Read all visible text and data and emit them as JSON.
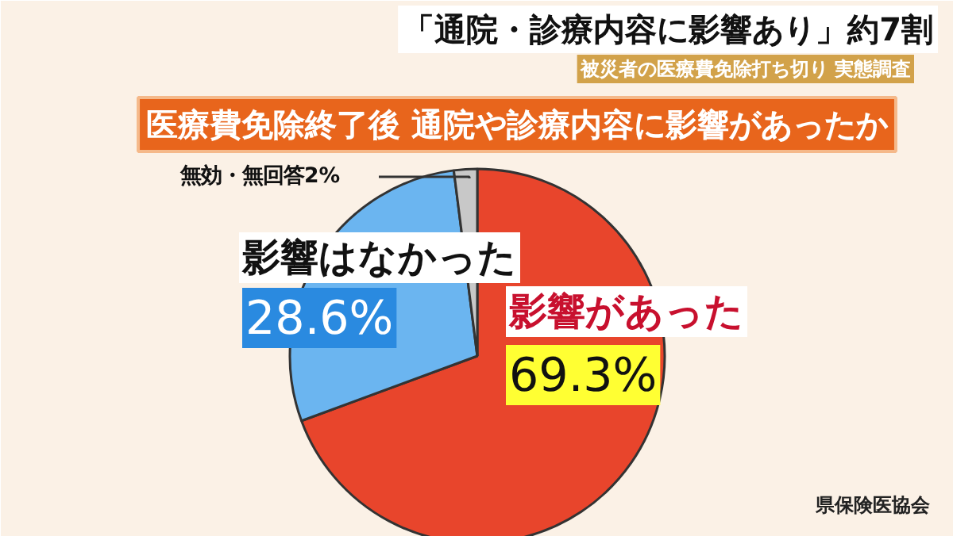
{
  "chart_data": {
    "type": "pie",
    "title": "「通院・診療内容に影響あり」約7割",
    "subtitle": "被災者の医療費免除打ち切り 実態調査",
    "categories": [
      "影響があった",
      "影響はなかった",
      "無効・無回答"
    ],
    "values": [
      69.3,
      28.6,
      2
    ],
    "colors": [
      "#e8452c",
      "#6bb5f0",
      "#c8c8c8"
    ],
    "value_labels": [
      "69.3%",
      "28.6%",
      "2%"
    ],
    "annotations": [
      "医療費免除終了後 通院や診療内容に影響があったか",
      "県保険医協会"
    ]
  }
}
